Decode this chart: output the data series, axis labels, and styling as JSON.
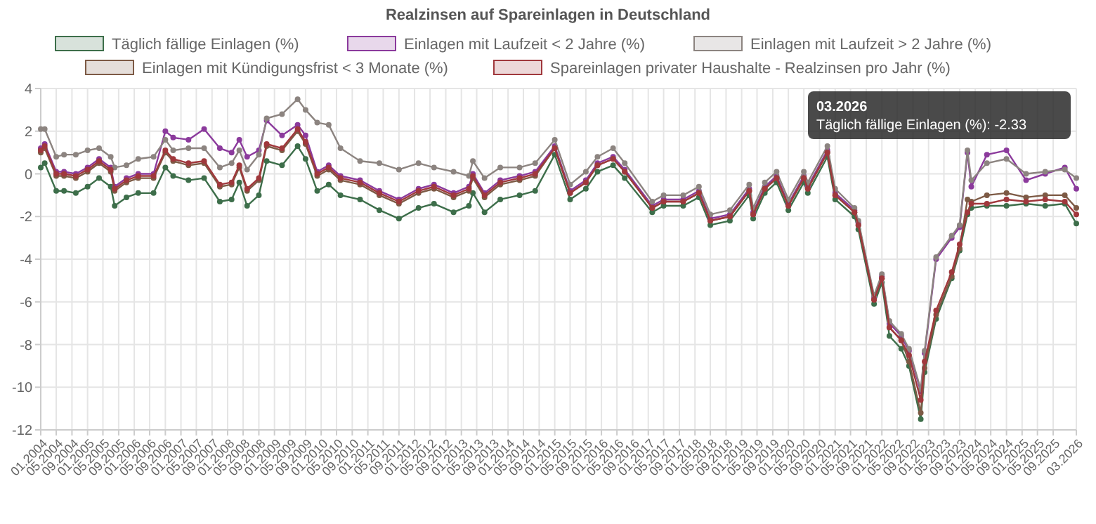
{
  "chart_data": {
    "type": "line",
    "title": "Realzinsen auf Spareinlagen in Deutschland",
    "x": [
      "2004-01",
      "2004-02",
      "2004-05",
      "2004-07",
      "2004-10",
      "2005-01",
      "2005-04",
      "2005-07",
      "2005-08",
      "2005-11",
      "2006-02",
      "2006-06",
      "2006-09",
      "2006-11",
      "2007-03",
      "2007-07",
      "2007-11",
      "2008-02",
      "2008-04",
      "2008-06",
      "2008-09",
      "2008-11",
      "2009-03",
      "2009-07",
      "2009-09",
      "2009-12",
      "2010-03",
      "2010-06",
      "2010-11",
      "2011-04",
      "2011-09",
      "2012-02",
      "2012-06",
      "2012-11",
      "2013-03",
      "2013-04",
      "2013-07",
      "2013-11",
      "2014-04",
      "2014-08",
      "2015-01",
      "2015-05",
      "2015-09",
      "2015-12",
      "2016-04",
      "2016-07",
      "2017-02",
      "2017-05",
      "2017-10",
      "2018-02",
      "2018-05",
      "2018-10",
      "2019-03",
      "2019-04",
      "2019-07",
      "2019-10",
      "2020-01",
      "2020-05",
      "2020-06",
      "2020-11",
      "2021-01",
      "2021-06",
      "2021-07",
      "2021-11",
      "2022-01",
      "2022-03",
      "2022-06",
      "2022-08",
      "2022-11",
      "2022-12",
      "2023-03",
      "2023-07",
      "2023-09",
      "2023-11",
      "2023-12",
      "2024-04",
      "2024-09",
      "2025-02",
      "2025-07",
      "2025-12",
      "2026-03"
    ],
    "series": [
      {
        "name": "Täglich fällige Einlagen (%)",
        "color": "#3d6e4a",
        "values": [
          0.3,
          0.5,
          -0.8,
          -0.8,
          -0.9,
          -0.6,
          -0.2,
          -0.6,
          -1.5,
          -1.1,
          -0.9,
          -0.9,
          0.3,
          -0.1,
          -0.3,
          -0.2,
          -1.3,
          -1.2,
          -0.4,
          -1.5,
          -1.0,
          0.6,
          0.4,
          1.3,
          0.7,
          -0.8,
          -0.5,
          -1.0,
          -1.2,
          -1.7,
          -2.1,
          -1.6,
          -1.4,
          -1.8,
          -1.5,
          -0.9,
          -1.8,
          -1.2,
          -1.0,
          -0.8,
          0.9,
          -1.2,
          -0.7,
          0.1,
          0.4,
          -0.2,
          -1.8,
          -1.5,
          -1.5,
          -1.1,
          -2.4,
          -2.2,
          -1.0,
          -2.1,
          -0.9,
          -0.4,
          -1.7,
          -0.4,
          -0.9,
          0.8,
          -1.2,
          -2.0,
          -2.6,
          -6.1,
          -5.1,
          -7.6,
          -8.2,
          -9.0,
          -11.5,
          -9.3,
          -6.8,
          -4.9,
          -3.6,
          -1.9,
          -1.6,
          -1.5,
          -1.5,
          -1.4,
          -1.5,
          -1.4,
          -2.33
        ]
      },
      {
        "name": "Einlagen mit Laufzeit < 2 Jahre (%)",
        "color": "#8b3a9c",
        "values": [
          1.2,
          1.4,
          0.1,
          0.1,
          0.0,
          0.3,
          0.7,
          0.3,
          -0.6,
          -0.2,
          0.0,
          0.0,
          2.0,
          1.7,
          1.6,
          2.1,
          1.2,
          1.0,
          1.6,
          0.8,
          1.1,
          2.5,
          1.8,
          2.3,
          1.8,
          0.1,
          0.4,
          -0.1,
          -0.3,
          -0.8,
          -1.2,
          -0.7,
          -0.5,
          -0.9,
          -0.6,
          0.0,
          -0.9,
          -0.3,
          -0.1,
          0.1,
          1.3,
          -0.8,
          -0.3,
          0.5,
          0.8,
          0.2,
          -1.5,
          -1.2,
          -1.2,
          -0.8,
          -2.1,
          -1.9,
          -0.7,
          -1.8,
          -0.6,
          -0.1,
          -1.4,
          -0.1,
          -0.6,
          1.1,
          -0.9,
          -1.7,
          -2.3,
          -5.8,
          -4.8,
          -7.0,
          -7.6,
          -8.3,
          -10.2,
          -8.4,
          -4.0,
          -3.0,
          -2.5,
          1.0,
          -0.6,
          0.9,
          1.1,
          -0.3,
          0.0,
          0.3,
          -0.7
        ]
      },
      {
        "name": "Einlagen mit Laufzeit > 2 Jahre (%)",
        "color": "#8c8480",
        "values": [
          2.1,
          2.1,
          0.8,
          0.9,
          0.9,
          1.1,
          1.2,
          0.8,
          0.3,
          0.4,
          0.7,
          0.8,
          1.6,
          1.1,
          1.2,
          1.2,
          0.3,
          0.5,
          1.1,
          0.2,
          0.9,
          2.6,
          2.8,
          3.5,
          3.0,
          2.4,
          2.3,
          1.2,
          0.6,
          0.5,
          0.2,
          0.5,
          0.3,
          0.1,
          -0.1,
          0.6,
          -0.2,
          0.3,
          0.3,
          0.5,
          1.6,
          -0.5,
          0.1,
          0.8,
          1.2,
          0.5,
          -1.3,
          -1.0,
          -1.0,
          -0.6,
          -1.9,
          -1.7,
          -0.5,
          -1.6,
          -0.4,
          0.1,
          -1.2,
          0.1,
          -0.4,
          1.3,
          -0.7,
          -1.6,
          -2.2,
          -5.7,
          -4.7,
          -6.9,
          -7.5,
          -8.2,
          -10.1,
          -8.3,
          -3.9,
          -2.9,
          -2.4,
          1.1,
          -0.3,
          0.5,
          0.7,
          0.0,
          0.1,
          0.2,
          -0.2
        ]
      },
      {
        "name": "Einlagen mit Kündigungsfrist < 3 Monate (%)",
        "color": "#7d5a45",
        "values": [
          1.0,
          1.2,
          -0.1,
          -0.1,
          -0.2,
          0.1,
          0.5,
          0.1,
          -0.8,
          -0.4,
          -0.2,
          -0.2,
          1.0,
          0.6,
          0.4,
          0.5,
          -0.6,
          -0.5,
          0.3,
          -0.8,
          -0.3,
          1.3,
          1.1,
          2.0,
          1.4,
          -0.1,
          0.2,
          -0.3,
          -0.5,
          -1.0,
          -1.4,
          -0.9,
          -0.7,
          -1.1,
          -0.8,
          -0.2,
          -1.1,
          -0.5,
          -0.3,
          -0.1,
          1.2,
          -0.9,
          -0.4,
          0.4,
          0.7,
          0.1,
          -1.6,
          -1.3,
          -1.3,
          -0.9,
          -2.2,
          -2.0,
          -0.8,
          -1.9,
          -0.7,
          -0.2,
          -1.5,
          -0.2,
          -0.7,
          1.0,
          -1.0,
          -1.8,
          -2.4,
          -5.9,
          -4.9,
          -7.2,
          -7.8,
          -8.8,
          -11.2,
          -9.1,
          -6.6,
          -4.8,
          -3.5,
          -1.2,
          -1.3,
          -1.0,
          -0.9,
          -1.1,
          -1.0,
          -1.0,
          -1.6
        ]
      },
      {
        "name": "Spareinlagen privater Haushalte - Realzinsen pro Jahr (%)",
        "color": "#a0383c",
        "values": [
          1.1,
          1.3,
          0.0,
          0.0,
          -0.1,
          0.2,
          0.6,
          0.2,
          -0.7,
          -0.3,
          -0.1,
          -0.1,
          1.1,
          0.7,
          0.5,
          0.6,
          -0.5,
          -0.4,
          0.4,
          -0.7,
          -0.2,
          1.4,
          1.2,
          2.1,
          1.5,
          0.0,
          0.3,
          -0.2,
          -0.4,
          -0.9,
          -1.3,
          -0.8,
          -0.6,
          -1.0,
          -0.7,
          -0.1,
          -1.0,
          -0.4,
          -0.2,
          0.0,
          1.2,
          -0.9,
          -0.4,
          0.4,
          0.7,
          0.1,
          -1.6,
          -1.3,
          -1.3,
          -0.9,
          -2.2,
          -2.0,
          -0.8,
          -1.9,
          -0.7,
          -0.2,
          -1.5,
          -0.2,
          -0.7,
          1.0,
          -1.0,
          -1.8,
          -2.4,
          -5.9,
          -4.9,
          -7.2,
          -7.8,
          -8.5,
          -10.6,
          -8.8,
          -6.4,
          -4.6,
          -3.3,
          -1.8,
          -1.4,
          -1.4,
          -1.2,
          -1.3,
          -1.2,
          -1.3,
          -1.9
        ]
      }
    ],
    "xlim": [
      "2004-01",
      "2026-03"
    ],
    "xticks": [
      {
        "value": "2004-01",
        "label": "01.2004"
      },
      {
        "value": "2004-05",
        "label": "05.2004"
      },
      {
        "value": "2004-09",
        "label": "09.2004"
      },
      {
        "value": "2005-01",
        "label": "01.2005"
      },
      {
        "value": "2005-05",
        "label": "05.2005"
      },
      {
        "value": "2005-09",
        "label": "09.2005"
      },
      {
        "value": "2006-01",
        "label": "01.2006"
      },
      {
        "value": "2006-05",
        "label": "05.2006"
      },
      {
        "value": "2006-09",
        "label": "09.2006"
      },
      {
        "value": "2007-01",
        "label": "01.2007"
      },
      {
        "value": "2007-05",
        "label": "05.2007"
      },
      {
        "value": "2007-09",
        "label": "09.2007"
      },
      {
        "value": "2008-01",
        "label": "01.2008"
      },
      {
        "value": "2008-05",
        "label": "05.2008"
      },
      {
        "value": "2008-09",
        "label": "09.2008"
      },
      {
        "value": "2009-01",
        "label": "01.2009"
      },
      {
        "value": "2009-05",
        "label": "05.2009"
      },
      {
        "value": "2009-09",
        "label": "09.2009"
      },
      {
        "value": "2010-01",
        "label": "01.2010"
      },
      {
        "value": "2010-05",
        "label": "05.2010"
      },
      {
        "value": "2010-09",
        "label": "09.2010"
      },
      {
        "value": "2011-01",
        "label": "01.2011"
      },
      {
        "value": "2011-05",
        "label": "05.2011"
      },
      {
        "value": "2011-09",
        "label": "09.2011"
      },
      {
        "value": "2012-01",
        "label": "01.2012"
      },
      {
        "value": "2012-05",
        "label": "05.2012"
      },
      {
        "value": "2012-09",
        "label": "09.2012"
      },
      {
        "value": "2013-01",
        "label": "01.2013"
      },
      {
        "value": "2013-05",
        "label": "05.2013"
      },
      {
        "value": "2013-09",
        "label": "09.2013"
      },
      {
        "value": "2014-01",
        "label": "01.2014"
      },
      {
        "value": "2014-05",
        "label": "05.2014"
      },
      {
        "value": "2014-09",
        "label": "09.2014"
      },
      {
        "value": "2015-01",
        "label": "01.2015"
      },
      {
        "value": "2015-05",
        "label": "05.2015"
      },
      {
        "value": "2015-09",
        "label": "09.2015"
      },
      {
        "value": "2016-01",
        "label": "01.2016"
      },
      {
        "value": "2016-05",
        "label": "05.2016"
      },
      {
        "value": "2016-09",
        "label": "09.2016"
      },
      {
        "value": "2017-01",
        "label": "01.2017"
      },
      {
        "value": "2017-05",
        "label": "05.2017"
      },
      {
        "value": "2017-09",
        "label": "09.2017"
      },
      {
        "value": "2018-01",
        "label": "01.2018"
      },
      {
        "value": "2018-05",
        "label": "05.2018"
      },
      {
        "value": "2018-09",
        "label": "09.2018"
      },
      {
        "value": "2019-01",
        "label": "01.2019"
      },
      {
        "value": "2019-05",
        "label": "05.2019"
      },
      {
        "value": "2019-09",
        "label": "09.2019"
      },
      {
        "value": "2020-01",
        "label": "01.2020"
      },
      {
        "value": "2020-05",
        "label": "05.2020"
      },
      {
        "value": "2020-09",
        "label": "09.2020"
      },
      {
        "value": "2021-01",
        "label": "01.2021"
      },
      {
        "value": "2021-05",
        "label": "05.2021"
      },
      {
        "value": "2021-09",
        "label": "09.2021"
      },
      {
        "value": "2022-01",
        "label": "01.2022"
      },
      {
        "value": "2022-05",
        "label": "05.2022"
      },
      {
        "value": "2022-09",
        "label": "09.2022"
      },
      {
        "value": "2023-01",
        "label": "01.2023"
      },
      {
        "value": "2023-05",
        "label": "05.2023"
      },
      {
        "value": "2023-09",
        "label": "09.2023"
      },
      {
        "value": "2024-01",
        "label": "01.2024"
      },
      {
        "value": "2024-05",
        "label": "05.2024"
      },
      {
        "value": "2024-09",
        "label": "09.2024"
      },
      {
        "value": "2025-01",
        "label": "01.2025"
      },
      {
        "value": "2025-05",
        "label": "05.2025"
      },
      {
        "value": "2025-09",
        "label": "09.2025"
      },
      {
        "value": "2026-03",
        "label": "03.2026"
      }
    ],
    "ylim": [
      -12,
      4
    ],
    "yticks": [
      -12,
      -10,
      -8,
      -6,
      -4,
      -2,
      0,
      2,
      4
    ],
    "grid": true,
    "legend": "top",
    "marker": "circle",
    "line_style": "solid",
    "annotations": [
      "03.2026",
      "Täglich fällige Einlagen (%): -2.33"
    ]
  }
}
